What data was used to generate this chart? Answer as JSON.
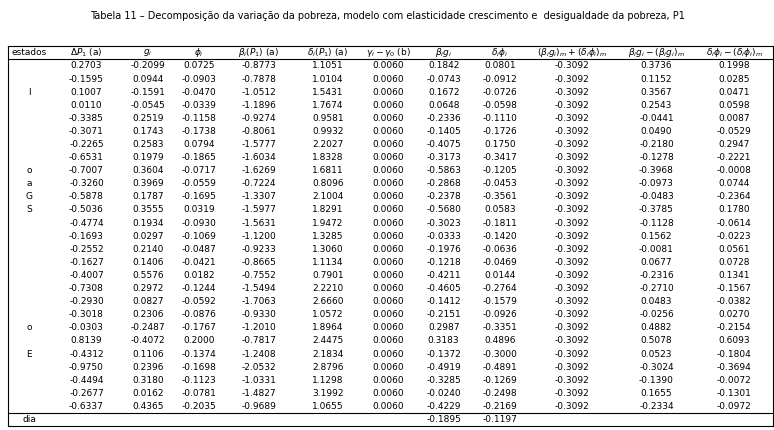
{
  "title": "Tabela 11 – Decomposição da variação da pobreza, modelo com elasticidade crescimento e  desigualdade da pobreza, P1",
  "col0_labels": [
    "",
    "",
    "l",
    "",
    "",
    "",
    "",
    "",
    "o",
    "a",
    "G",
    "S",
    "",
    "",
    "",
    "",
    "",
    "",
    "",
    "",
    "o",
    "",
    "E",
    "",
    "",
    "",
    "",
    ""
  ],
  "rows": [
    [
      0.2703,
      -0.2099,
      0.0725,
      -0.8773,
      1.1051,
      0.006,
      0.1842,
      0.0801,
      -0.3092,
      0.3736,
      0.1998
    ],
    [
      -0.1595,
      0.0944,
      -0.0903,
      -0.7878,
      1.0104,
      0.006,
      -0.0743,
      -0.0912,
      -0.3092,
      0.1152,
      0.0285
    ],
    [
      0.1007,
      -0.1591,
      -0.047,
      -1.0512,
      1.5431,
      0.006,
      0.1672,
      -0.0726,
      -0.3092,
      0.3567,
      0.0471
    ],
    [
      0.011,
      -0.0545,
      -0.0339,
      -1.1896,
      1.7674,
      0.006,
      0.0648,
      -0.0598,
      -0.3092,
      0.2543,
      0.0598
    ],
    [
      -0.3385,
      0.2519,
      -0.1158,
      -0.9274,
      0.9581,
      0.006,
      -0.2336,
      -0.111,
      -0.3092,
      -0.0441,
      0.0087
    ],
    [
      -0.3071,
      0.1743,
      -0.1738,
      -0.8061,
      0.9932,
      0.006,
      -0.1405,
      -0.1726,
      -0.3092,
      0.049,
      -0.0529
    ],
    [
      -0.2265,
      0.2583,
      0.0794,
      -1.5777,
      2.2027,
      0.006,
      -0.4075,
      0.175,
      -0.3092,
      -0.218,
      0.2947
    ],
    [
      -0.6531,
      0.1979,
      -0.1865,
      -1.6034,
      1.8328,
      0.006,
      -0.3173,
      -0.3417,
      -0.3092,
      -0.1278,
      -0.2221
    ],
    [
      -0.7007,
      0.3604,
      -0.0717,
      -1.6269,
      1.6811,
      0.006,
      -0.5863,
      -0.1205,
      -0.3092,
      -0.3968,
      -0.0008
    ],
    [
      -0.326,
      0.3969,
      -0.0559,
      -0.7224,
      0.8096,
      0.006,
      -0.2868,
      -0.0453,
      -0.3092,
      -0.0973,
      0.0744
    ],
    [
      -0.5878,
      0.1787,
      -0.1695,
      -1.3307,
      2.1004,
      0.006,
      -0.2378,
      -0.3561,
      -0.3092,
      -0.0483,
      -0.2364
    ],
    [
      -0.5036,
      0.3555,
      0.0319,
      -1.5977,
      1.8291,
      0.006,
      -0.568,
      0.0583,
      -0.3092,
      -0.3785,
      0.178
    ],
    [
      -0.4774,
      0.1934,
      -0.093,
      -1.5631,
      1.9472,
      0.006,
      -0.3023,
      -0.1811,
      -0.3092,
      -0.1128,
      -0.0614
    ],
    [
      -0.1693,
      0.0297,
      -0.1069,
      -1.12,
      1.3285,
      0.006,
      -0.0333,
      -0.142,
      -0.3092,
      0.1562,
      -0.0223
    ],
    [
      -0.2552,
      0.214,
      -0.0487,
      -0.9233,
      1.306,
      0.006,
      -0.1976,
      -0.0636,
      -0.3092,
      -0.0081,
      0.0561
    ],
    [
      -0.1627,
      0.1406,
      -0.0421,
      -0.8665,
      1.1134,
      0.006,
      -0.1218,
      -0.0469,
      -0.3092,
      0.0677,
      0.0728
    ],
    [
      -0.4007,
      0.5576,
      0.0182,
      -0.7552,
      0.7901,
      0.006,
      -0.4211,
      0.0144,
      -0.3092,
      -0.2316,
      0.1341
    ],
    [
      -0.7308,
      0.2972,
      -0.1244,
      -1.5494,
      2.221,
      0.006,
      -0.4605,
      -0.2764,
      -0.3092,
      -0.271,
      -0.1567
    ],
    [
      -0.293,
      0.0827,
      -0.0592,
      -1.7063,
      2.666,
      0.006,
      -0.1412,
      -0.1579,
      -0.3092,
      0.0483,
      -0.0382
    ],
    [
      -0.3018,
      0.2306,
      -0.0876,
      -0.933,
      1.0572,
      0.006,
      -0.2151,
      -0.0926,
      -0.3092,
      -0.0256,
      0.027
    ],
    [
      -0.0303,
      -0.2487,
      -0.1767,
      -1.201,
      1.8964,
      0.006,
      0.2987,
      -0.3351,
      -0.3092,
      0.4882,
      -0.2154
    ],
    [
      0.8139,
      -0.4072,
      0.2,
      -0.7817,
      2.4475,
      0.006,
      0.3183,
      0.4896,
      -0.3092,
      0.5078,
      0.6093
    ],
    [
      -0.4312,
      0.1106,
      -0.1374,
      -1.2408,
      2.1834,
      0.006,
      -0.1372,
      -0.3,
      -0.3092,
      0.0523,
      -0.1804
    ],
    [
      -0.975,
      0.2396,
      -0.1698,
      -2.0532,
      2.8796,
      0.006,
      -0.4919,
      -0.4891,
      -0.3092,
      -0.3024,
      -0.3694
    ],
    [
      -0.4494,
      0.318,
      -0.1123,
      -1.0331,
      1.1298,
      0.006,
      -0.3285,
      -0.1269,
      -0.3092,
      -0.139,
      -0.0072
    ],
    [
      -0.2677,
      0.0162,
      -0.0781,
      -1.4827,
      3.1992,
      0.006,
      -0.024,
      -0.2498,
      -0.3092,
      0.1655,
      -0.1301
    ],
    [
      -0.6337,
      0.4365,
      -0.2035,
      -0.9689,
      1.0655,
      0.006,
      -0.4229,
      -0.2169,
      -0.3092,
      -0.2334,
      -0.0972
    ]
  ],
  "media_bigi": "-0.1895",
  "media_dipi": "-0.1197",
  "font_size": 6.5,
  "header_font_size": 6.5,
  "title_font_size": 7.0
}
